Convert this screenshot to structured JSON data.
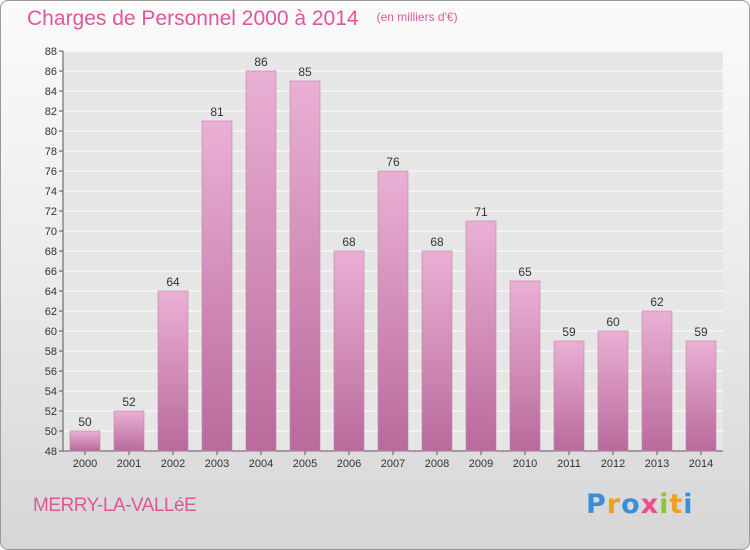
{
  "title": "Charges de Personnel 2000 à 2014",
  "unit": "(en milliers d'€)",
  "location": "MERRY-LA-VALLéE",
  "brand": "Proxiti",
  "brand_letters": [
    {
      "ch": "P",
      "color": "#3a8fd8"
    },
    {
      "ch": "r",
      "color": "#f0a020"
    },
    {
      "ch": "o",
      "color": "#3a8fd8"
    },
    {
      "ch": "x",
      "color": "#ec4d91"
    },
    {
      "ch": "i",
      "color": "#8cc43c"
    },
    {
      "ch": "t",
      "color": "#f0a020"
    },
    {
      "ch": "i",
      "color": "#3a8fd8"
    }
  ],
  "colors": {
    "bar": "#d98cbb",
    "bar_light": "#eab0d4",
    "bar_dark": "#b96a9b",
    "title": "#e0569a",
    "grid": "#ffffff"
  },
  "chart_data": {
    "type": "bar",
    "title": "Charges de Personnel 2000 à 2014",
    "subtitle": "(en milliers d'€)",
    "categories": [
      "2000",
      "2001",
      "2002",
      "2003",
      "2004",
      "2005",
      "2006",
      "2007",
      "2008",
      "2009",
      "2010",
      "2011",
      "2012",
      "2013",
      "2014"
    ],
    "values": [
      50,
      52,
      64,
      81,
      86,
      85,
      68,
      76,
      68,
      71,
      65,
      59,
      60,
      62,
      59
    ],
    "ylim": [
      48,
      88
    ],
    "yticks": [
      48,
      50,
      52,
      54,
      56,
      58,
      60,
      62,
      64,
      66,
      68,
      70,
      72,
      74,
      76,
      78,
      80,
      82,
      84,
      86,
      88
    ],
    "grid": true,
    "xlabel": "",
    "ylabel": ""
  }
}
